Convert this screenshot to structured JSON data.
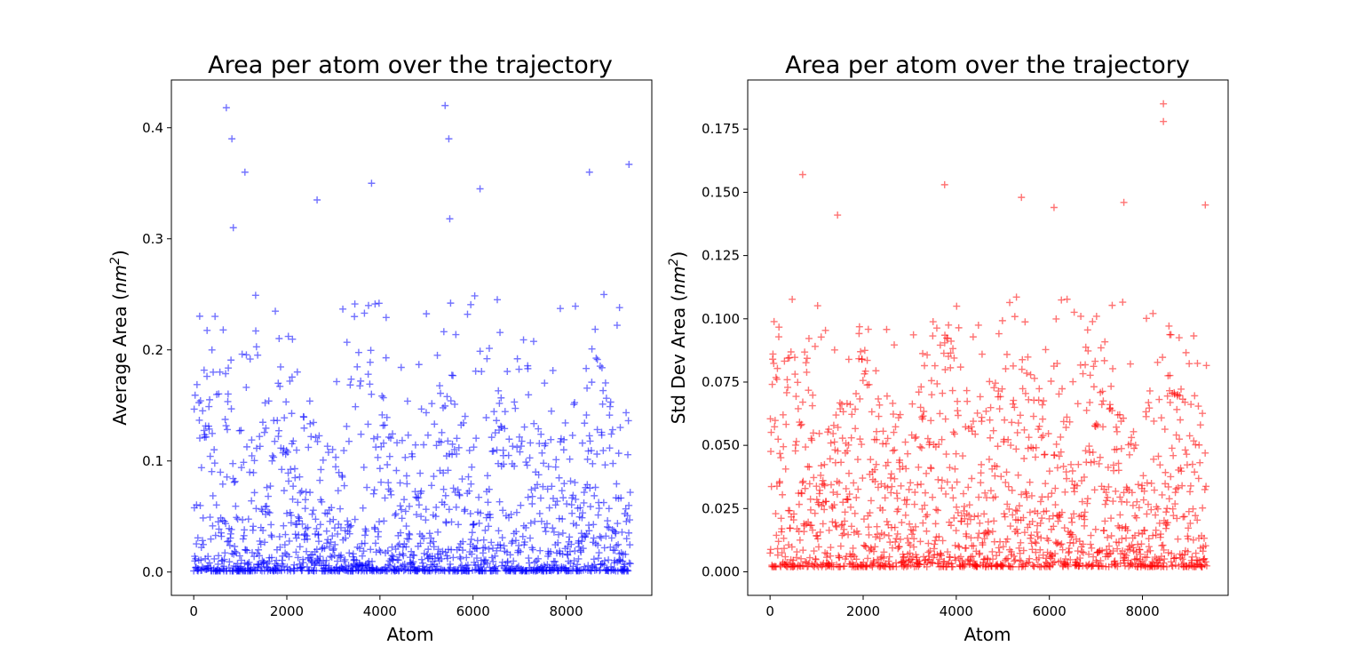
{
  "chart_data": [
    {
      "type": "scatter",
      "title": "Area per atom over the trajectory",
      "xlabel": "Atom",
      "ylabel_text": "Average Area (",
      "ylabel_unit_base": "nm",
      "ylabel_unit_sup": "2",
      "ylabel_close": ")",
      "xlim": [
        -480,
        9840
      ],
      "ylim": [
        -0.021,
        0.443
      ],
      "xticks": [
        0,
        2000,
        4000,
        6000,
        8000
      ],
      "xtick_labels": [
        "0",
        "2000",
        "4000",
        "6000",
        "8000"
      ],
      "yticks": [
        0.0,
        0.1,
        0.2,
        0.3,
        0.4
      ],
      "ytick_labels": [
        "0.0",
        "0.1",
        "0.2",
        "0.3",
        "0.4"
      ],
      "marker": "+",
      "color": "#0000ff",
      "alpha": 0.55,
      "n_points": 9380,
      "x_range": [
        0,
        9380
      ],
      "notable_points": [
        {
          "x": 700,
          "y": 0.418
        },
        {
          "x": 820,
          "y": 0.39
        },
        {
          "x": 850,
          "y": 0.31
        },
        {
          "x": 1100,
          "y": 0.36
        },
        {
          "x": 2650,
          "y": 0.335
        },
        {
          "x": 3820,
          "y": 0.35
        },
        {
          "x": 5400,
          "y": 0.42
        },
        {
          "x": 5480,
          "y": 0.39
        },
        {
          "x": 5500,
          "y": 0.318
        },
        {
          "x": 6150,
          "y": 0.345
        },
        {
          "x": 8500,
          "y": 0.36
        },
        {
          "x": 9350,
          "y": 0.367
        }
      ],
      "grid": false,
      "legend": "none"
    },
    {
      "type": "scatter",
      "title": "Area per atom over the trajectory",
      "xlabel": "Atom",
      "ylabel_text": "Std Dev Area (",
      "ylabel_unit_base": "nm",
      "ylabel_unit_sup": "2",
      "ylabel_close": ")",
      "xlim": [
        -480,
        9840
      ],
      "ylim": [
        -0.0093,
        0.1944
      ],
      "xticks": [
        0,
        2000,
        4000,
        6000,
        8000
      ],
      "xtick_labels": [
        "0",
        "2000",
        "4000",
        "6000",
        "8000"
      ],
      "yticks": [
        0.0,
        0.025,
        0.05,
        0.075,
        0.1,
        0.125,
        0.15,
        0.175
      ],
      "ytick_labels": [
        "0.000",
        "0.025",
        "0.050",
        "0.075",
        "0.100",
        "0.125",
        "0.150",
        "0.175"
      ],
      "marker": "+",
      "color": "#ff0000",
      "alpha": 0.55,
      "n_points": 9380,
      "x_range": [
        0,
        9380
      ],
      "notable_points": [
        {
          "x": 700,
          "y": 0.157
        },
        {
          "x": 1450,
          "y": 0.141
        },
        {
          "x": 3750,
          "y": 0.153
        },
        {
          "x": 5400,
          "y": 0.148
        },
        {
          "x": 6100,
          "y": 0.144
        },
        {
          "x": 7600,
          "y": 0.146
        },
        {
          "x": 8450,
          "y": 0.185
        },
        {
          "x": 8450,
          "y": 0.178
        },
        {
          "x": 9350,
          "y": 0.145
        }
      ],
      "grid": false,
      "legend": "none"
    }
  ]
}
